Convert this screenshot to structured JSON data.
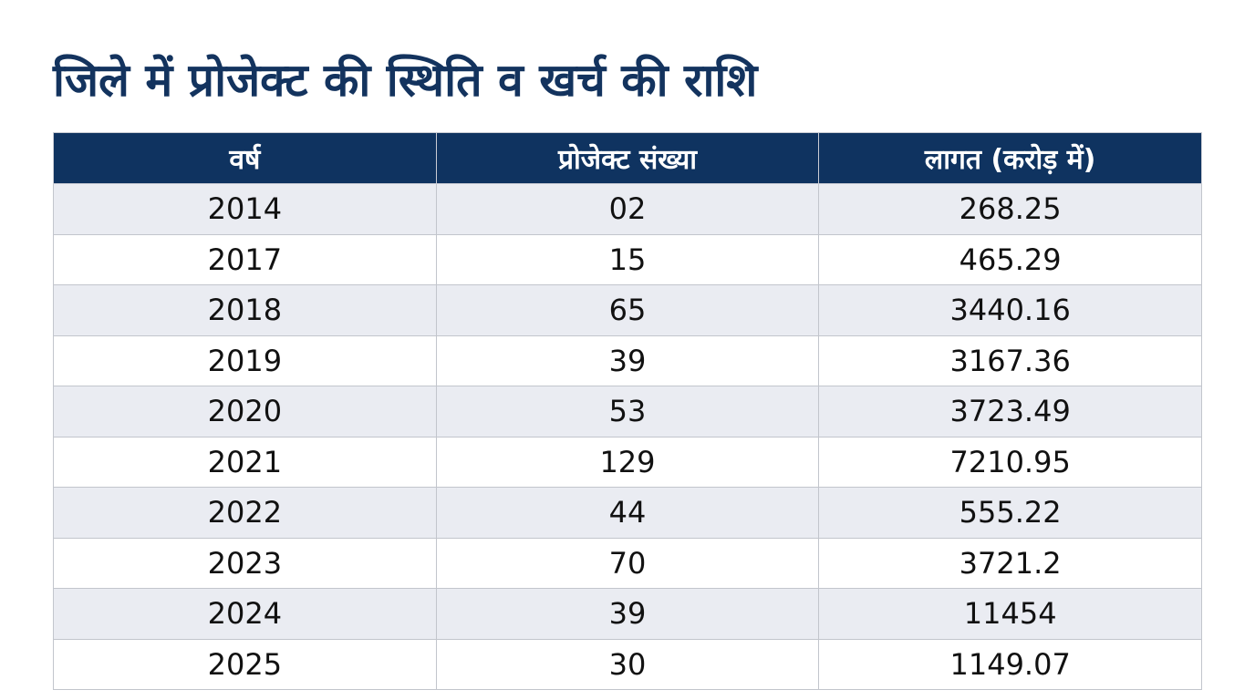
{
  "header": {
    "title": "जिले में प्रोजेक्ट की स्थिति व खर्च की राशि"
  },
  "table": {
    "columns": [
      "वर्ष",
      "प्रोजेक्ट संख्या",
      "लागत (करोड़ में)"
    ],
    "rows": [
      [
        "2014",
        "02",
        "268.25"
      ],
      [
        "2017",
        "15",
        "465.29"
      ],
      [
        "2018",
        "65",
        "3440.16"
      ],
      [
        "2019",
        "39",
        "3167.36"
      ],
      [
        "2020",
        "53",
        "3723.49"
      ],
      [
        "2021",
        "129",
        "7210.95"
      ],
      [
        "2022",
        "44",
        "555.22"
      ],
      [
        "2023",
        "70",
        "3721.2"
      ],
      [
        "2024",
        "39",
        "11454"
      ],
      [
        "2025",
        "30",
        "1149.07"
      ]
    ]
  }
}
